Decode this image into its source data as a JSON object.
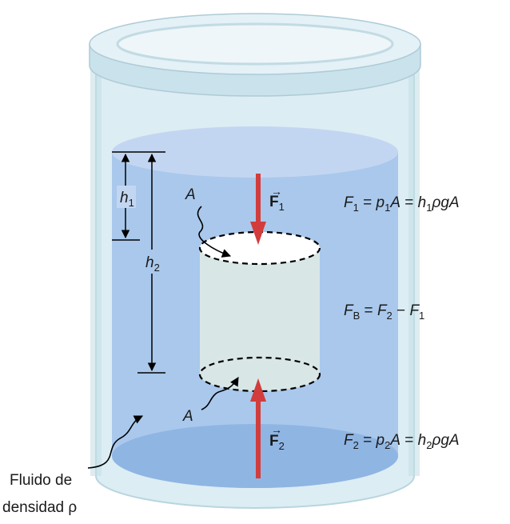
{
  "labels": {
    "h1": "h",
    "h1_sub": "1",
    "h2": "h",
    "h2_sub": "2",
    "area_top": "A",
    "area_bottom": "A",
    "force_top": "F",
    "force_top_sub": "1",
    "force_bottom": "F",
    "force_bottom_sub": "2",
    "fluid_line1": "Fluido de",
    "fluid_line2": "densidad ρ"
  },
  "equations": {
    "top": {
      "F": "F",
      "F_sub": "1",
      "eq1": " = ",
      "p": "p",
      "p_sub": "1",
      "A": "A",
      "eq2": " = ",
      "h": "h",
      "h_sub": "1",
      "rest": "ρgA"
    },
    "buoyant": {
      "F": "F",
      "F_sub": "B",
      "eq": " = ",
      "F2": "F",
      "F2_sub": "2",
      "minus": " − ",
      "F1": "F",
      "F1_sub": "1"
    },
    "bottom": {
      "F": "F",
      "F_sub": "2",
      "eq1": " = ",
      "p": "p",
      "p_sub": "2",
      "A": "A",
      "eq2": " = ",
      "h": "h",
      "h_sub": "2",
      "rest": "ρgA"
    }
  },
  "colors": {
    "fluid": "#a9c8ec",
    "fluid_top": "#c3d6f1",
    "container": "#d6eaf2",
    "arrow": "#d23c3c",
    "cylinder": "#d8e6e6"
  }
}
